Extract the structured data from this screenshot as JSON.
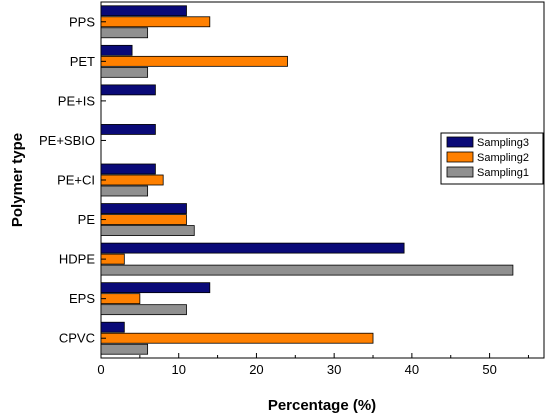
{
  "chart_data": {
    "type": "bar",
    "orientation": "horizontal",
    "xlabel": "Percentage (%)",
    "ylabel": "Polymer type",
    "xlim": [
      0,
      57
    ],
    "xticks": [
      0,
      10,
      20,
      30,
      40,
      50
    ],
    "grid": false,
    "legend_position": "right",
    "categories": [
      "PPS",
      "PET",
      "PE+IS",
      "PE+SBIO",
      "PE+CI",
      "PE",
      "HDPE",
      "EPS",
      "CPVC"
    ],
    "series": [
      {
        "name": "Sampling3",
        "color": "#0a0a78",
        "values": [
          11,
          4,
          7,
          7,
          7,
          11,
          39,
          14,
          3
        ]
      },
      {
        "name": "Sampling2",
        "color": "#ff8000",
        "values": [
          14,
          24,
          0,
          0,
          8,
          11,
          3,
          5,
          35
        ]
      },
      {
        "name": "Sampling1",
        "color": "#909090",
        "values": [
          6,
          6,
          0,
          0,
          6,
          12,
          53,
          11,
          6
        ]
      }
    ]
  }
}
